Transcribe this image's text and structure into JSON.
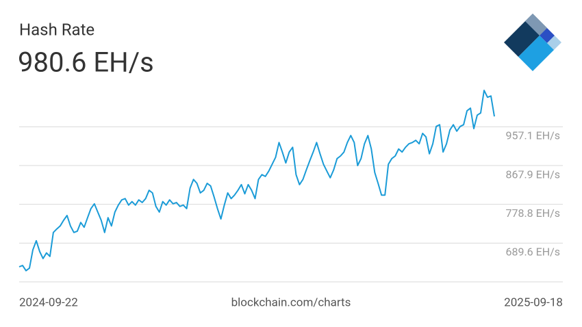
{
  "chart_data": {
    "type": "line",
    "title": "Hash Rate",
    "subtitle": "980.6 EH/s",
    "source": "blockchain.com/charts",
    "xticks": [
      "2024-09-22",
      "2025-09-18"
    ],
    "ylim": [
      600.4,
      1060
    ],
    "yticks": [
      {
        "value": 689.6,
        "label": "689.6 EH/s"
      },
      {
        "value": 778.8,
        "label": "778.8 EH/s"
      },
      {
        "value": 867.9,
        "label": "867.9 EH/s"
      },
      {
        "value": 957.1,
        "label": "957.1 EH/s"
      }
    ],
    "grid": true,
    "series": [
      {
        "color": "#1a9bd7",
        "values": [
          635,
          638,
          626,
          632,
          674,
          695,
          670,
          654,
          667,
          659,
          714,
          722,
          729,
          742,
          753,
          729,
          714,
          717,
          737,
          726,
          748,
          769,
          780,
          761,
          742,
          714,
          748,
          729,
          761,
          777,
          789,
          792,
          777,
          785,
          777,
          789,
          783,
          792,
          811,
          805,
          774,
          761,
          785,
          777,
          789,
          780,
          783,
          774,
          777,
          769,
          816,
          836,
          827,
          805,
          811,
          827,
          821,
          796,
          769,
          745,
          777,
          805,
          792,
          800,
          811,
          824,
          803,
          824,
          811,
          792,
          836,
          847,
          843,
          855,
          871,
          887,
          921,
          899,
          874,
          899,
          910,
          847,
          824,
          836,
          858,
          879,
          899,
          921,
          895,
          871,
          855,
          840,
          858,
          884,
          890,
          899,
          921,
          937,
          921,
          868,
          884,
          918,
          937,
          906,
          852,
          827,
          800,
          800,
          871,
          884,
          890,
          906,
          899,
          910,
          918,
          921,
          926,
          918,
          942,
          934,
          895,
          918,
          958,
          962,
          899,
          918,
          950,
          962,
          947,
          958,
          962,
          994,
          1000,
          953,
          984,
          989,
          1041,
          1025,
          1028,
          981
        ]
      }
    ]
  }
}
